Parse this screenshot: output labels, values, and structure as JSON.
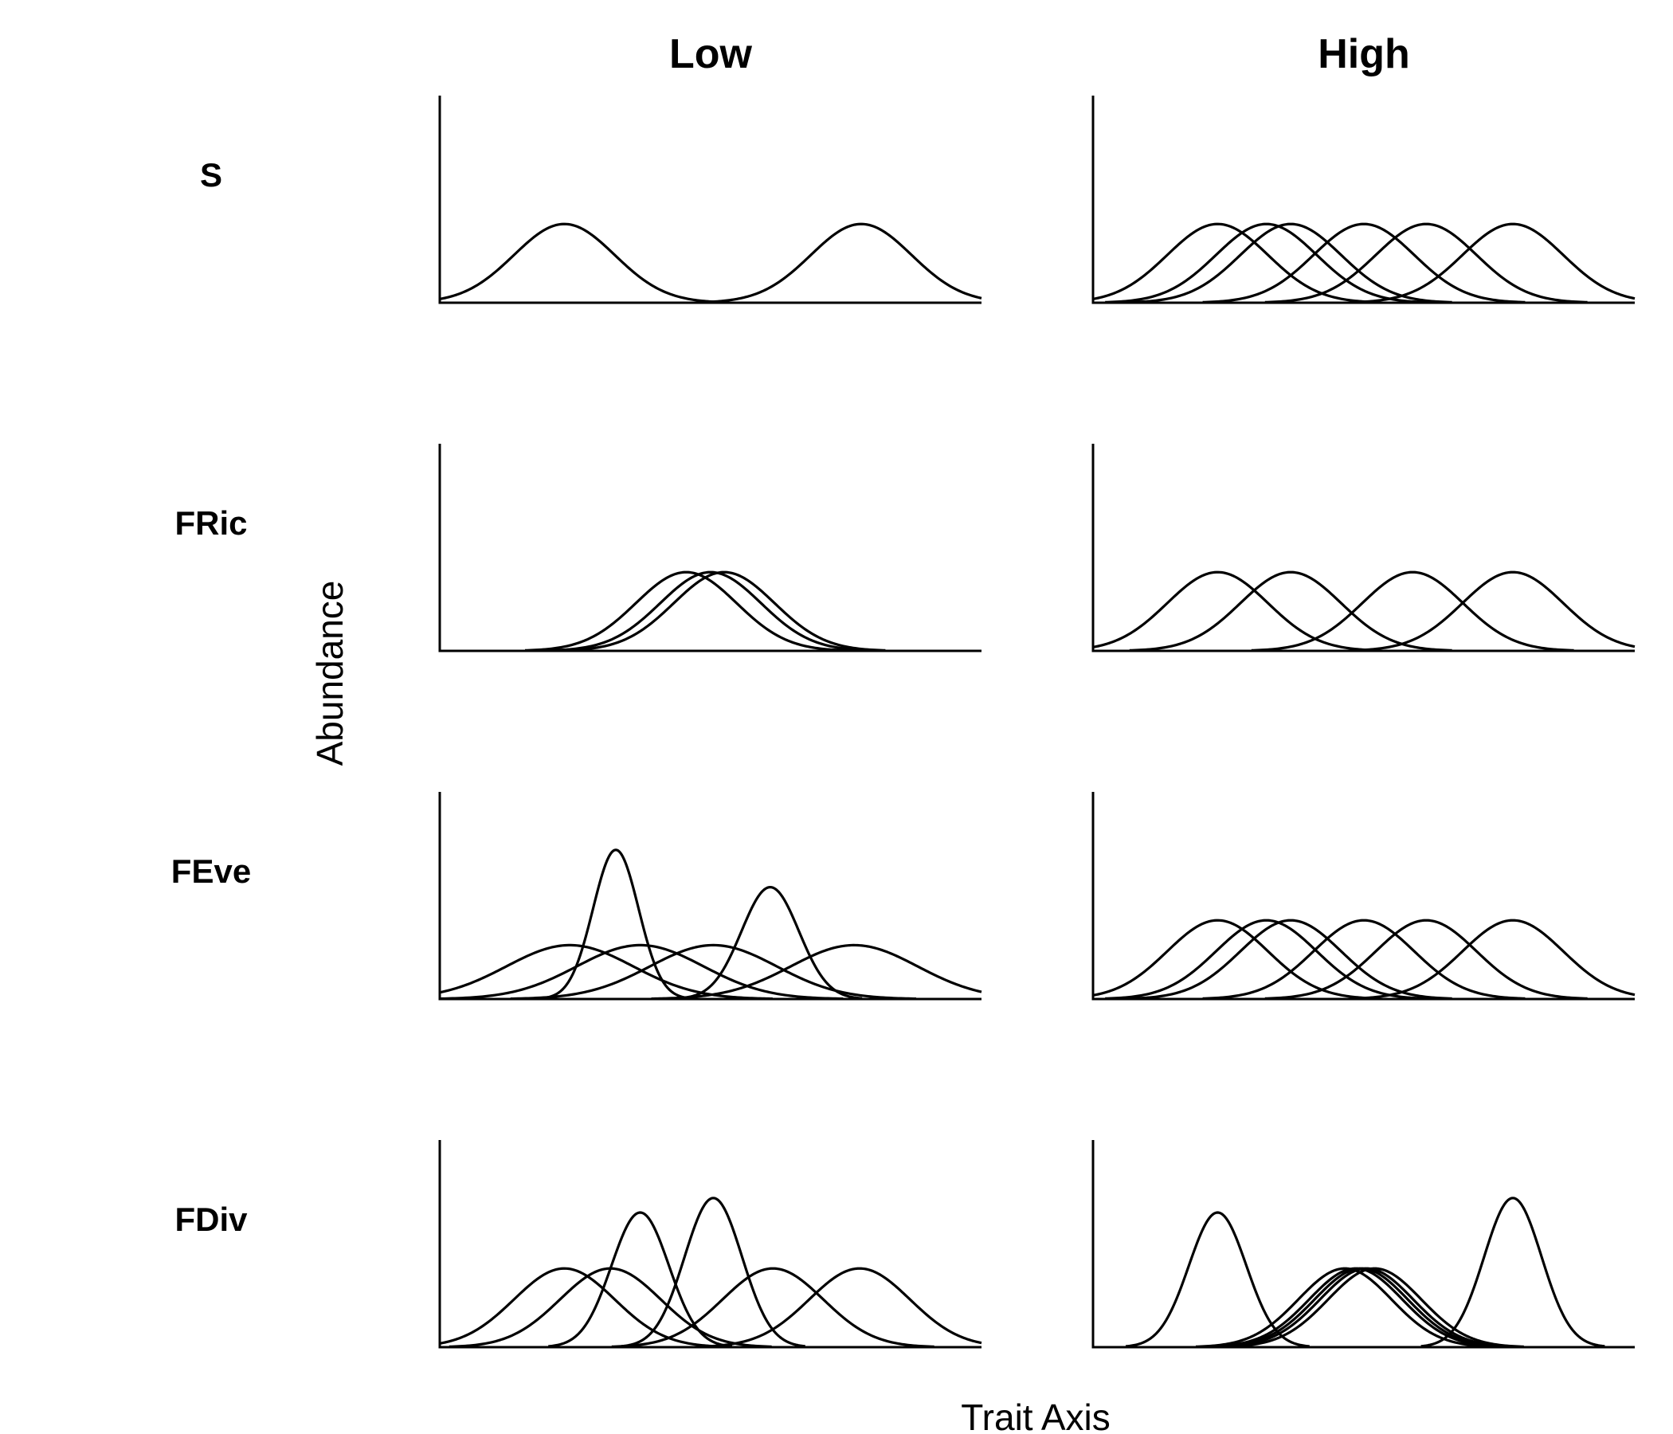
{
  "columns": [
    "Low",
    "High"
  ],
  "rows": [
    "S",
    "FRic",
    "FEve",
    "FDiv"
  ],
  "xlabel": "Trait Axis",
  "ylabel": "Abundance",
  "chart_data": {
    "type": "line",
    "description_units": "Each curve is a Gaussian species abundance distribution along the trait axis; mu = center, sigma = width, a = peak height (trait axis 0–100, abundance 0–100).",
    "xlim": [
      0,
      100
    ],
    "ylim": [
      0,
      100
    ],
    "grid": false,
    "panels": [
      {
        "row": "S",
        "column": "Low",
        "curves": [
          {
            "mu": 23,
            "sigma": 9.3,
            "a": 38
          },
          {
            "mu": 77.8,
            "sigma": 9.3,
            "a": 38
          }
        ]
      },
      {
        "row": "S",
        "column": "High",
        "curves": [
          {
            "mu": 23,
            "sigma": 9.3,
            "a": 38
          },
          {
            "mu": 32,
            "sigma": 9.3,
            "a": 38
          },
          {
            "mu": 36.5,
            "sigma": 9.3,
            "a": 38
          },
          {
            "mu": 50,
            "sigma": 9.3,
            "a": 38
          },
          {
            "mu": 61.5,
            "sigma": 9.3,
            "a": 38
          },
          {
            "mu": 77.5,
            "sigma": 9.3,
            "a": 38
          }
        ]
      },
      {
        "row": "FRic",
        "column": "Low",
        "curves": [
          {
            "mu": 45.5,
            "sigma": 9.3,
            "a": 38
          },
          {
            "mu": 50,
            "sigma": 9.3,
            "a": 38
          },
          {
            "mu": 52.5,
            "sigma": 9.3,
            "a": 38
          }
        ]
      },
      {
        "row": "FRic",
        "column": "High",
        "curves": [
          {
            "mu": 23,
            "sigma": 9.3,
            "a": 38
          },
          {
            "mu": 36.5,
            "sigma": 9.3,
            "a": 38
          },
          {
            "mu": 59,
            "sigma": 9.3,
            "a": 38
          },
          {
            "mu": 77.5,
            "sigma": 9.3,
            "a": 38
          }
        ]
      },
      {
        "row": "FEve",
        "column": "Low",
        "curves": [
          {
            "mu": 24,
            "sigma": 11.7,
            "a": 26
          },
          {
            "mu": 37,
            "sigma": 11.7,
            "a": 26
          },
          {
            "mu": 50.5,
            "sigma": 11.7,
            "a": 26
          },
          {
            "mu": 76.5,
            "sigma": 11.7,
            "a": 26
          },
          {
            "mu": 32.5,
            "sigma": 4.2,
            "a": 72
          },
          {
            "mu": 61,
            "sigma": 5.3,
            "a": 54
          }
        ]
      },
      {
        "row": "FEve",
        "column": "High",
        "curves": [
          {
            "mu": 23,
            "sigma": 9.3,
            "a": 38
          },
          {
            "mu": 32,
            "sigma": 9.3,
            "a": 38
          },
          {
            "mu": 36.5,
            "sigma": 9.3,
            "a": 38
          },
          {
            "mu": 50,
            "sigma": 9.3,
            "a": 38
          },
          {
            "mu": 61.5,
            "sigma": 9.3,
            "a": 38
          },
          {
            "mu": 77.5,
            "sigma": 9.3,
            "a": 38
          }
        ]
      },
      {
        "row": "FDiv",
        "column": "Low",
        "curves": [
          {
            "mu": 23,
            "sigma": 9.3,
            "a": 38
          },
          {
            "mu": 31.5,
            "sigma": 9.3,
            "a": 38
          },
          {
            "mu": 61.5,
            "sigma": 9.3,
            "a": 38
          },
          {
            "mu": 77.5,
            "sigma": 9.3,
            "a": 38
          },
          {
            "mu": 37,
            "sigma": 5.3,
            "a": 65
          },
          {
            "mu": 50.5,
            "sigma": 5.3,
            "a": 72
          }
        ]
      },
      {
        "row": "FDiv",
        "column": "High",
        "curves": [
          {
            "mu": 23,
            "sigma": 5.3,
            "a": 65
          },
          {
            "mu": 77.5,
            "sigma": 5.3,
            "a": 72
          },
          {
            "mu": 46.5,
            "sigma": 8.6,
            "a": 38
          },
          {
            "mu": 48.5,
            "sigma": 8.6,
            "a": 38
          },
          {
            "mu": 49.5,
            "sigma": 8.6,
            "a": 38
          },
          {
            "mu": 50.5,
            "sigma": 8.6,
            "a": 38
          },
          {
            "mu": 52,
            "sigma": 8.6,
            "a": 38
          }
        ]
      }
    ]
  }
}
